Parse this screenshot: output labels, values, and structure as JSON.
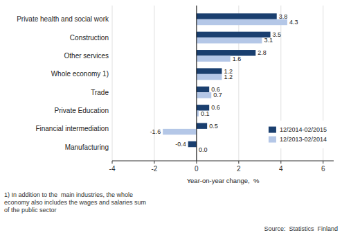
{
  "chart_data": {
    "type": "bar",
    "orientation": "horizontal",
    "categories": [
      "Manufacturing",
      "Financial intermediation",
      "Private Education",
      "Trade",
      "Whole economy 1)",
      "Other services",
      "Construction",
      "Private health and social work"
    ],
    "series": [
      {
        "name": "12/2014-02/2015",
        "color": "#1a3f6f",
        "values": [
          -0.4,
          0.5,
          0.6,
          0.6,
          1.2,
          2.8,
          3.5,
          3.8
        ]
      },
      {
        "name": "12/2013-02/2014",
        "color": "#b4c7e7",
        "values": [
          0.0,
          -1.6,
          0.1,
          0.7,
          1.2,
          1.6,
          3.1,
          4.3
        ],
        "value_labels": [
          "0.0",
          "-1.6",
          "0.1",
          "0.7",
          "1.2",
          "1.6",
          "3.1",
          "4.3"
        ]
      }
    ],
    "xlim": [
      -4,
      6.5
    ],
    "xticks": [
      -4,
      -2,
      0,
      2,
      4,
      6
    ],
    "xlabel": "Year-on-year change,  %",
    "annotations": [
      "1) In addition to the  main industries, the whole\neconomy also includes the wages and salaries sum\nof the public sector",
      "Source:  Statistics  Finland"
    ],
    "grid": true,
    "legend": "lower right",
    "data_labels": true
  }
}
